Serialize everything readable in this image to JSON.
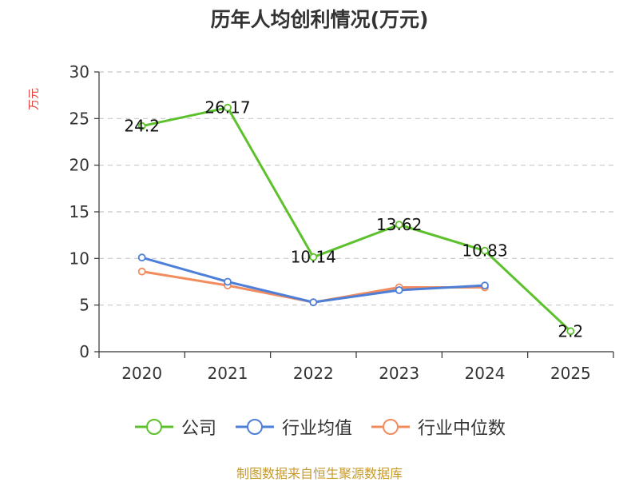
{
  "chart_data": {
    "type": "line",
    "title": "历年人均创利情况(万元)",
    "ylabel": "万元",
    "xlabel": "",
    "categories": [
      "2020",
      "2021",
      "2022",
      "2023",
      "2024",
      "2025"
    ],
    "ylim": [
      0,
      30
    ],
    "yticks": [
      0,
      5,
      10,
      15,
      20,
      25,
      30
    ],
    "grid": "horizontal dashed",
    "legend_position": "bottom",
    "series": [
      {
        "name": "公司",
        "color": "#5cc12c",
        "values": [
          24.2,
          26.17,
          10.14,
          13.62,
          10.83,
          2.2
        ],
        "labels": [
          "24.2",
          "26.17",
          "10.14",
          "13.62",
          "10.83",
          "2.2"
        ]
      },
      {
        "name": "行业均值",
        "color": "#4e7fd8",
        "values": [
          10.1,
          7.5,
          5.3,
          6.6,
          7.1,
          null
        ]
      },
      {
        "name": "行业中位数",
        "color": "#f28c5e",
        "values": [
          8.6,
          7.1,
          5.3,
          6.9,
          6.9,
          null
        ]
      }
    ]
  },
  "footer": {
    "source": "制图数据来自恒生聚源数据库"
  }
}
